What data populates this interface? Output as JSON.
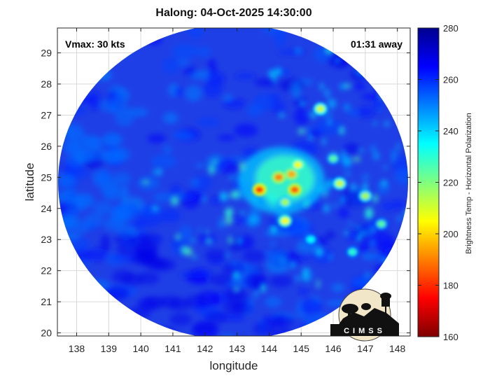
{
  "title": "Halong: 04-Oct-2025 14:30:00",
  "vmax": "Vmax: 30 kts",
  "away": "01:31 away",
  "logo_text": "CIMSS",
  "map": {
    "xlabel": "longitude",
    "ylabel": "latitude",
    "xlim": [
      137.4,
      148.4
    ],
    "ylim": [
      19.9,
      29.8
    ],
    "xticks": [
      "138",
      "139",
      "140",
      "141",
      "142",
      "143",
      "144",
      "145",
      "146",
      "147",
      "148"
    ],
    "yticks": [
      "20",
      "21",
      "22",
      "23",
      "24",
      "25",
      "26",
      "27",
      "28",
      "29"
    ]
  },
  "colorbar": {
    "label": "Brightness Temp - Horizontal Polarization",
    "range": [
      160,
      280
    ],
    "ticks": [
      "160",
      "180",
      "200",
      "220",
      "240",
      "260",
      "280"
    ],
    "colors": [
      "#7f0000",
      "#ff0000",
      "#ff7f00",
      "#ffff00",
      "#7fff7f",
      "#00ffff",
      "#007fff",
      "#0000ff",
      "#00008f"
    ]
  },
  "storm": {
    "center_lon": 144.6,
    "center_lat": 24.9,
    "cells": [
      {
        "lon": 144.7,
        "lat": 25.1,
        "tb": 195
      },
      {
        "lon": 144.3,
        "lat": 25.0,
        "tb": 190
      },
      {
        "lon": 144.8,
        "lat": 24.6,
        "tb": 185
      },
      {
        "lon": 143.7,
        "lat": 24.6,
        "tb": 180
      },
      {
        "lon": 144.9,
        "lat": 25.4,
        "tb": 205
      },
      {
        "lon": 144.5,
        "lat": 24.2,
        "tb": 215
      },
      {
        "lon": 144.5,
        "lat": 23.6,
        "tb": 205
      },
      {
        "lon": 145.6,
        "lat": 27.2,
        "tb": 210
      },
      {
        "lon": 146.2,
        "lat": 24.8,
        "tb": 210
      },
      {
        "lon": 147.0,
        "lat": 24.4,
        "tb": 215
      },
      {
        "lon": 146.0,
        "lat": 25.6,
        "tb": 225
      },
      {
        "lon": 147.5,
        "lat": 23.5,
        "tb": 225
      },
      {
        "lon": 146.6,
        "lat": 22.6,
        "tb": 230
      },
      {
        "lon": 145.3,
        "lat": 23.0,
        "tb": 235
      }
    ]
  }
}
